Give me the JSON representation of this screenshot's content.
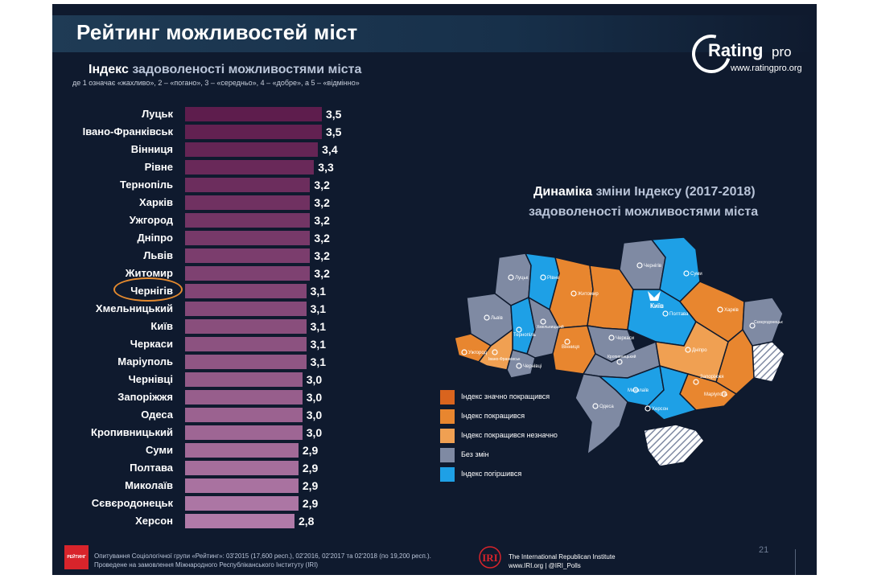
{
  "header": {
    "title": "Рейтинг можливостей міст"
  },
  "logo": {
    "name_a": "Rating",
    "name_b": "pro",
    "url": "www.ratingpro.org"
  },
  "chart_data": {
    "type": "bar",
    "orientation": "horizontal",
    "title_part1": "Індекс",
    "title_part2": "задоволеності можливостями міста",
    "subtitle": "де 1 означає «жахливо», 2 – «погано», 3 – «середньо», 4 – «добре», а 5 – «відмінно»",
    "categories": [
      "Луцьк",
      "Івано-Франківськ",
      "Вінниця",
      "Рівне",
      "Тернопіль",
      "Харків",
      "Ужгород",
      "Дніпро",
      "Львів",
      "Житомир",
      "Чернігів",
      "Хмельницький",
      "Київ",
      "Черкаси",
      "Маріуполь",
      "Чернівці",
      "Запоріжжя",
      "Одеса",
      "Кропивницький",
      "Суми",
      "Полтава",
      "Миколаїв",
      "Сєвєродонецьк",
      "Херсон"
    ],
    "values": [
      3.5,
      3.5,
      3.4,
      3.3,
      3.2,
      3.2,
      3.2,
      3.2,
      3.2,
      3.2,
      3.1,
      3.1,
      3.1,
      3.1,
      3.1,
      3.0,
      3.0,
      3.0,
      3.0,
      2.9,
      2.9,
      2.9,
      2.9,
      2.8
    ],
    "value_labels": [
      "3,5",
      "3,5",
      "3,4",
      "3,3",
      "3,2",
      "3,2",
      "3,2",
      "3,2",
      "3,2",
      "3,2",
      "3,1",
      "3,1",
      "3,1",
      "3,1",
      "3,1",
      "3,0",
      "3,0",
      "3,0",
      "3,0",
      "2,9",
      "2,9",
      "2,9",
      "2,9",
      "2,8"
    ],
    "highlighted": "Чернігів",
    "bar_color_start": "#5e1d4d",
    "bar_color_end": "#b07aa8"
  },
  "map_panel": {
    "title_part1": "Динаміка",
    "title_part2": "зміни Індексу (2017-2018)",
    "title_line2": "задоволеності можливостями міста",
    "city_labels": [
      "Луцьк",
      "Рівне",
      "Житомир",
      "Київ",
      "Чернігів",
      "Суми",
      "Харків",
      "Полтава",
      "Львів",
      "Тернопіль",
      "Хмельницький",
      "Вінниця",
      "Ужгород",
      "Івано-Франківськ",
      "Чернівці",
      "Черкаси",
      "Кропивницький",
      "Дніпро",
      "Запоріжжя",
      "Маріуполь",
      "Сєвєродонецьк",
      "Миколаїв",
      "Одеса",
      "Херсон"
    ],
    "legend": [
      {
        "label": "Індекс значно покращився",
        "color": "#d9641e"
      },
      {
        "label": "Індекс покращився",
        "color": "#e8862f"
      },
      {
        "label": "Індекс покращився незначно",
        "color": "#f0a052"
      },
      {
        "label": "Без змін",
        "color": "#7f8aa3"
      },
      {
        "label": "Індекс погіршився",
        "color": "#1ea0e6"
      }
    ]
  },
  "footer": {
    "logo_text": "РЕЙТИНГ",
    "note_line1": "Опитування Соціологічної групи «Рейтинг»: 03'2015 (17,600 респ.), 02'2016, 02'2017 та 02'2018 (по 19,200 респ.).",
    "note_line2": "Проведене на замовлення Міжнародного Республіканського Інституту (IRI)",
    "iri_name": "IRI",
    "iri_line1": "The International Republican Institute",
    "iri_line2": "www.IRI.org | @IRI_Polls",
    "page_number": "21"
  }
}
